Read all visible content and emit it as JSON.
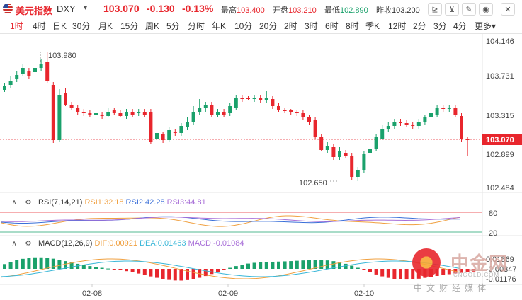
{
  "header": {
    "symbol_name": "美元指数",
    "symbol_code": "DXY",
    "caret": "▾",
    "price": "103.070",
    "change": "-0.130",
    "change_pct": "-0.13%",
    "high_label": "最高",
    "high_value": "103.400",
    "open_label": "开盘",
    "open_value": "103.210",
    "low_label": "最低",
    "low_value": "102.890",
    "prev_label": "昨收",
    "prev_value": "103.200"
  },
  "toolbar": {
    "buttons": [
      {
        "name": "draw-line-icon",
        "glyph": "⊵"
      },
      {
        "name": "draw-tools-icon",
        "glyph": "⊻"
      },
      {
        "name": "pen-icon",
        "glyph": "✎"
      },
      {
        "name": "eye-icon",
        "glyph": "◉"
      },
      {
        "name": "close-icon",
        "glyph": "✕"
      }
    ]
  },
  "periods": [
    "1时",
    "4时",
    "日K",
    "30分",
    "月K",
    "15分",
    "周K",
    "5分",
    "分时",
    "年K",
    "10分",
    "20分",
    "2时",
    "3时",
    "6时",
    "8时",
    "季K",
    "12时",
    "2分",
    "3分",
    "4分",
    "更多▾"
  ],
  "active_period": 0,
  "price_axis": {
    "ticks": [
      "104.146",
      "103.731",
      "103.315",
      "102.899",
      "102.484"
    ],
    "current": "103.070",
    "annot_high": "103.980",
    "annot_low": "102.650"
  },
  "time_axis": [
    "02-08",
    "02-09",
    "02-10"
  ],
  "rsi": {
    "title": "RSI(7,14,21)",
    "rsi1": "RSI1:32.18",
    "rsi2": "RSI2:42.28",
    "rsi3": "RSI3:44.81",
    "level_high": "80",
    "level_low": "20",
    "colors": {
      "rsi1": "#f0a040",
      "rsi2": "#3a6fd8",
      "rsi3": "#a86fd8"
    }
  },
  "macd": {
    "title": "MACD(12,26,9)",
    "dif": "DIF:0.00921",
    "dea": "DEA:0.01463",
    "macd": "MACD:-0.01084",
    "ticks": [
      "0.01869",
      "-0.00347",
      "-0.01176"
    ],
    "colors": {
      "dif": "#f0a040",
      "dea": "#3ab7d8",
      "macd": "#a86fd8"
    }
  },
  "colors": {
    "up": "#1aa16b",
    "down": "#e8262d"
  },
  "watermark": {
    "brand": "中金网",
    "site": "CNGOLD.COM",
    "tagline": "中文财经媒体"
  }
}
